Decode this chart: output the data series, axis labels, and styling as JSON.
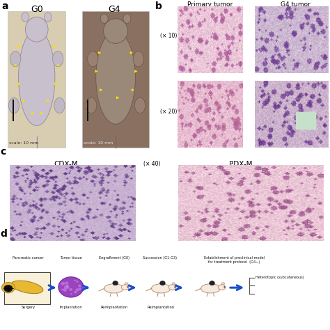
{
  "bg_color": "#ffffff",
  "panel_a_label": "a",
  "panel_b_label": "b",
  "panel_c_label": "c",
  "panel_d_label": "d",
  "panel_a_title_g0": "G0",
  "panel_a_title_g4": "G4",
  "panel_a_scale1": "scale: 10 mm",
  "panel_a_scale2": "scale: 10 mm",
  "panel_b_title1": "Primary tumor",
  "panel_b_title2": "G4 tumor",
  "panel_b_mag1": "(× 10)",
  "panel_b_mag2": "(× 20)",
  "panel_c_title1": "CDX-M",
  "panel_c_title2": "PDX-M",
  "panel_c_mag": "(× 40)",
  "panel_d_labels_top": [
    "Pancreatic cancer",
    "Tumor tissue",
    "Engraftment (G0)",
    "Succession (G1-G3)",
    "Establishment of preclinical model\nfor treatment protocol  (G4−)"
  ],
  "panel_d_labels_bottom": [
    "Surgery",
    "Implantation",
    "Reimplantation",
    "Reimplantation"
  ],
  "panel_d_note1": "Heterotopic (subcutaneous)",
  "arrow_color": "#1a4fcc",
  "text_color": "#111111",
  "label_fontsize": 9,
  "scale_fontsize": 4.5,
  "mag_fontsize": 5.5,
  "title_fontsize": 6.5,
  "diagram_fontsize": 4.5,
  "panel_label_fontsize": 10
}
